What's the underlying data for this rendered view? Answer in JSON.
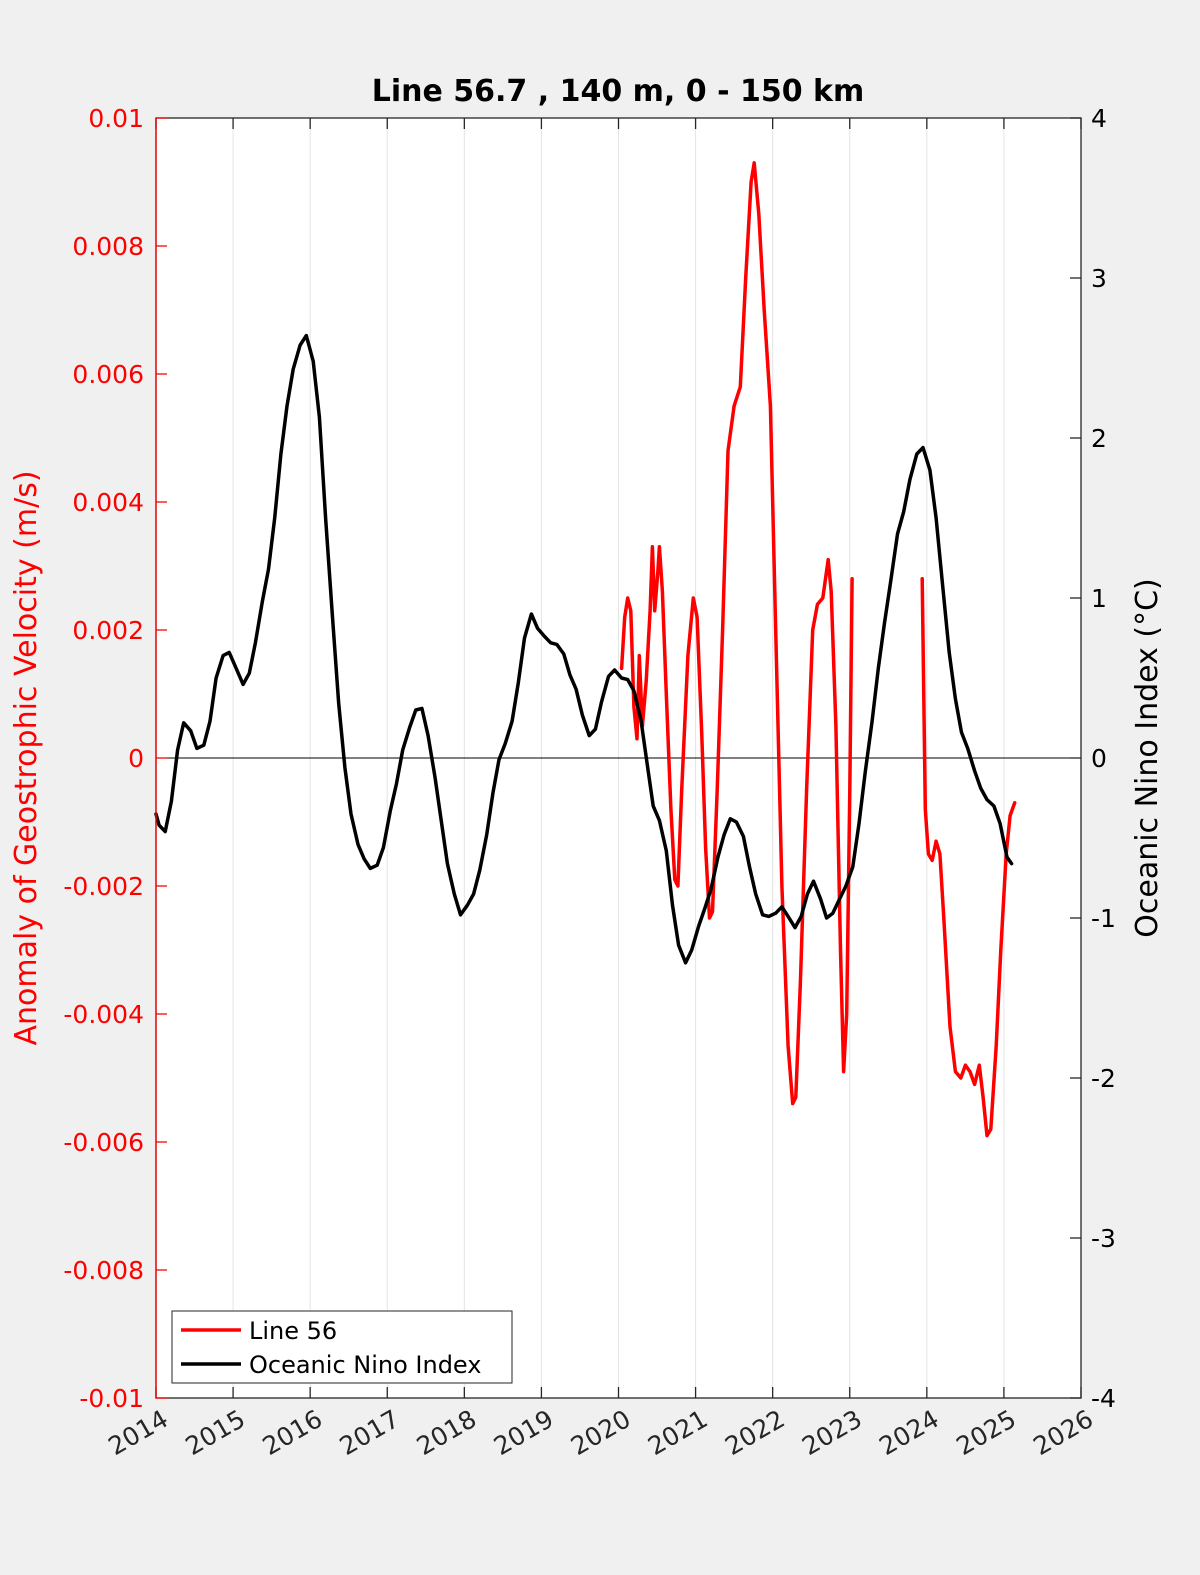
{
  "chart_data": {
    "type": "line",
    "title": "Line 56.7 , 140 m, 0 - 150 km",
    "xlabel": "",
    "ylabel": "Anomaly of Geostrophic Velocity (m/s)",
    "ylabel_right": "Oceanic Nino Index (°C)",
    "xlim": [
      2014,
      2026
    ],
    "ylim": [
      -0.01,
      0.01
    ],
    "ylim_right": [
      -4,
      4
    ],
    "x_ticks": [
      "2014",
      "2015",
      "2016",
      "2017",
      "2018",
      "2019",
      "2020",
      "2021",
      "2022",
      "2023",
      "2024",
      "2025",
      "2026"
    ],
    "y_ticks": [
      "0.01",
      "0.008",
      "0.006",
      "0.004",
      "0.002",
      "0",
      "-0.002",
      "-0.004",
      "-0.006",
      "-0.008",
      "-0.01"
    ],
    "y_ticks_right": [
      "4",
      "3",
      "2",
      "1",
      "0",
      "-1",
      "-2",
      "-3",
      "-4"
    ],
    "grid": "vertical",
    "legend_position": "bottom-left",
    "colors": {
      "line56": "#ff0000",
      "oni": "#000000",
      "left_axis": "#ff0000",
      "right_axis": "#000000"
    },
    "series": [
      {
        "name": "Line 56",
        "axis": "left",
        "segments": [
          [
            [
              2020.04,
              0.0014
            ],
            [
              2020.08,
              0.0022
            ],
            [
              2020.12,
              0.0025
            ],
            [
              2020.16,
              0.0023
            ],
            [
              2020.2,
              0.0008
            ],
            [
              2020.24,
              0.0003
            ],
            [
              2020.27,
              0.0016
            ],
            [
              2020.31,
              0.0005
            ],
            [
              2020.36,
              0.0012
            ],
            [
              2020.41,
              0.0023
            ],
            [
              2020.44,
              0.0033
            ],
            [
              2020.47,
              0.0023
            ],
            [
              2020.51,
              0.0029
            ],
            [
              2020.53,
              0.0033
            ],
            [
              2020.57,
              0.0026
            ],
            [
              2020.62,
              0.001
            ],
            [
              2020.68,
              -0.0008
            ],
            [
              2020.73,
              -0.0019
            ],
            [
              2020.77,
              -0.002
            ],
            [
              2020.82,
              -0.0005
            ],
            [
              2020.9,
              0.0016
            ],
            [
              2020.97,
              0.0025
            ],
            [
              2021.02,
              0.0022
            ],
            [
              2021.08,
              0.0004
            ],
            [
              2021.13,
              -0.0014
            ],
            [
              2021.18,
              -0.0025
            ],
            [
              2021.22,
              -0.0024
            ],
            [
              2021.28,
              -0.0005
            ],
            [
              2021.35,
              0.002
            ],
            [
              2021.42,
              0.0048
            ],
            [
              2021.5,
              0.0055
            ],
            [
              2021.58,
              0.0058
            ],
            [
              2021.65,
              0.0075
            ],
            [
              2021.72,
              0.009
            ],
            [
              2021.76,
              0.0093
            ],
            [
              2021.82,
              0.0085
            ],
            [
              2021.89,
              0.007
            ],
            [
              2021.97,
              0.0055
            ],
            [
              2022.04,
              0.002
            ],
            [
              2022.12,
              -0.002
            ],
            [
              2022.2,
              -0.0045
            ],
            [
              2022.26,
              -0.0054
            ],
            [
              2022.3,
              -0.0053
            ],
            [
              2022.36,
              -0.0035
            ],
            [
              2022.44,
              -0.0005
            ],
            [
              2022.52,
              0.002
            ],
            [
              2022.58,
              0.0024
            ],
            [
              2022.65,
              0.0025
            ],
            [
              2022.72,
              0.0031
            ],
            [
              2022.76,
              0.0026
            ],
            [
              2022.82,
              0.0005
            ],
            [
              2022.88,
              -0.003
            ],
            [
              2022.92,
              -0.0049
            ],
            [
              2022.96,
              -0.004
            ],
            [
              2023.0,
              -0.0005
            ],
            [
              2023.03,
              0.0028
            ]
          ],
          [
            [
              2023.94,
              0.0028
            ],
            [
              2023.98,
              -0.0008
            ],
            [
              2024.02,
              -0.0015
            ],
            [
              2024.07,
              -0.0016
            ],
            [
              2024.12,
              -0.0013
            ],
            [
              2024.17,
              -0.0015
            ],
            [
              2024.22,
              -0.0025
            ],
            [
              2024.3,
              -0.0042
            ],
            [
              2024.37,
              -0.0049
            ],
            [
              2024.44,
              -0.005
            ],
            [
              2024.5,
              -0.0048
            ],
            [
              2024.56,
              -0.0049
            ],
            [
              2024.62,
              -0.0051
            ],
            [
              2024.68,
              -0.0048
            ],
            [
              2024.73,
              -0.0053
            ],
            [
              2024.78,
              -0.0059
            ],
            [
              2024.83,
              -0.0058
            ],
            [
              2024.9,
              -0.0045
            ],
            [
              2024.96,
              -0.003
            ],
            [
              2025.03,
              -0.0015
            ],
            [
              2025.08,
              -0.0009
            ],
            [
              2025.14,
              -0.0007
            ]
          ]
        ]
      },
      {
        "name": "Oceanic Nino Index",
        "axis": "right",
        "points": [
          [
            2014.0,
            -0.35
          ],
          [
            2014.04,
            -0.42
          ],
          [
            2014.12,
            -0.46
          ],
          [
            2014.2,
            -0.27
          ],
          [
            2014.28,
            0.05
          ],
          [
            2014.36,
            0.22
          ],
          [
            2014.45,
            0.17
          ],
          [
            2014.53,
            0.06
          ],
          [
            2014.62,
            0.08
          ],
          [
            2014.7,
            0.23
          ],
          [
            2014.78,
            0.5
          ],
          [
            2014.87,
            0.64
          ],
          [
            2014.95,
            0.66
          ],
          [
            2015.04,
            0.56
          ],
          [
            2015.13,
            0.46
          ],
          [
            2015.21,
            0.53
          ],
          [
            2015.29,
            0.72
          ],
          [
            2015.38,
            0.98
          ],
          [
            2015.46,
            1.18
          ],
          [
            2015.54,
            1.5
          ],
          [
            2015.62,
            1.9
          ],
          [
            2015.7,
            2.2
          ],
          [
            2015.78,
            2.43
          ],
          [
            2015.87,
            2.58
          ],
          [
            2015.95,
            2.64
          ],
          [
            2016.04,
            2.48
          ],
          [
            2016.12,
            2.13
          ],
          [
            2016.2,
            1.5
          ],
          [
            2016.29,
            0.88
          ],
          [
            2016.37,
            0.34
          ],
          [
            2016.45,
            -0.06
          ],
          [
            2016.53,
            -0.35
          ],
          [
            2016.62,
            -0.54
          ],
          [
            2016.7,
            -0.63
          ],
          [
            2016.78,
            -0.69
          ],
          [
            2016.87,
            -0.67
          ],
          [
            2016.95,
            -0.56
          ],
          [
            2017.04,
            -0.33
          ],
          [
            2017.12,
            -0.16
          ],
          [
            2017.2,
            0.05
          ],
          [
            2017.29,
            0.19
          ],
          [
            2017.37,
            0.3
          ],
          [
            2017.45,
            0.31
          ],
          [
            2017.53,
            0.14
          ],
          [
            2017.62,
            -0.12
          ],
          [
            2017.7,
            -0.39
          ],
          [
            2017.78,
            -0.66
          ],
          [
            2017.87,
            -0.85
          ],
          [
            2017.95,
            -0.98
          ],
          [
            2018.04,
            -0.92
          ],
          [
            2018.12,
            -0.85
          ],
          [
            2018.2,
            -0.7
          ],
          [
            2018.29,
            -0.48
          ],
          [
            2018.37,
            -0.22
          ],
          [
            2018.45,
            -0.01
          ],
          [
            2018.53,
            0.09
          ],
          [
            2018.62,
            0.23
          ],
          [
            2018.7,
            0.47
          ],
          [
            2018.78,
            0.75
          ],
          [
            2018.87,
            0.9
          ],
          [
            2018.95,
            0.81
          ],
          [
            2019.04,
            0.76
          ],
          [
            2019.12,
            0.72
          ],
          [
            2019.2,
            0.71
          ],
          [
            2019.29,
            0.65
          ],
          [
            2019.37,
            0.52
          ],
          [
            2019.45,
            0.43
          ],
          [
            2019.53,
            0.27
          ],
          [
            2019.62,
            0.14
          ],
          [
            2019.7,
            0.18
          ],
          [
            2019.78,
            0.35
          ],
          [
            2019.87,
            0.51
          ],
          [
            2019.95,
            0.55
          ],
          [
            2020.04,
            0.5
          ],
          [
            2020.12,
            0.49
          ],
          [
            2020.2,
            0.42
          ],
          [
            2020.29,
            0.24
          ],
          [
            2020.37,
            -0.03
          ],
          [
            2020.45,
            -0.3
          ],
          [
            2020.53,
            -0.39
          ],
          [
            2020.62,
            -0.58
          ],
          [
            2020.7,
            -0.92
          ],
          [
            2020.78,
            -1.17
          ],
          [
            2020.87,
            -1.28
          ],
          [
            2020.95,
            -1.2
          ],
          [
            2021.04,
            -1.05
          ],
          [
            2021.12,
            -0.94
          ],
          [
            2021.2,
            -0.82
          ],
          [
            2021.29,
            -0.62
          ],
          [
            2021.37,
            -0.48
          ],
          [
            2021.45,
            -0.38
          ],
          [
            2021.53,
            -0.4
          ],
          [
            2021.62,
            -0.49
          ],
          [
            2021.7,
            -0.68
          ],
          [
            2021.78,
            -0.85
          ],
          [
            2021.87,
            -0.98
          ],
          [
            2021.95,
            -0.99
          ],
          [
            2022.04,
            -0.97
          ],
          [
            2022.12,
            -0.93
          ],
          [
            2022.2,
            -0.99
          ],
          [
            2022.29,
            -1.06
          ],
          [
            2022.37,
            -0.99
          ],
          [
            2022.45,
            -0.85
          ],
          [
            2022.53,
            -0.77
          ],
          [
            2022.62,
            -0.88
          ],
          [
            2022.7,
            -1.0
          ],
          [
            2022.78,
            -0.97
          ],
          [
            2022.87,
            -0.88
          ],
          [
            2022.95,
            -0.8
          ],
          [
            2023.04,
            -0.68
          ],
          [
            2023.12,
            -0.41
          ],
          [
            2023.2,
            -0.09
          ],
          [
            2023.29,
            0.23
          ],
          [
            2023.37,
            0.56
          ],
          [
            2023.45,
            0.84
          ],
          [
            2023.53,
            1.1
          ],
          [
            2023.62,
            1.4
          ],
          [
            2023.7,
            1.54
          ],
          [
            2023.78,
            1.74
          ],
          [
            2023.87,
            1.9
          ],
          [
            2023.95,
            1.94
          ],
          [
            2024.04,
            1.8
          ],
          [
            2024.12,
            1.5
          ],
          [
            2024.2,
            1.1
          ],
          [
            2024.29,
            0.66
          ],
          [
            2024.37,
            0.37
          ],
          [
            2024.45,
            0.16
          ],
          [
            2024.53,
            0.06
          ],
          [
            2024.62,
            -0.08
          ],
          [
            2024.7,
            -0.19
          ],
          [
            2024.78,
            -0.26
          ],
          [
            2024.87,
            -0.3
          ],
          [
            2024.95,
            -0.41
          ],
          [
            2025.04,
            -0.62
          ],
          [
            2025.1,
            -0.66
          ]
        ]
      }
    ]
  }
}
